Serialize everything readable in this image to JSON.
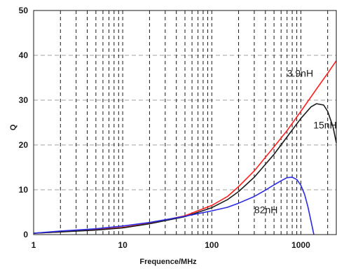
{
  "chart_data": {
    "type": "line",
    "title": "",
    "xlabel": "Frequence/MHz",
    "ylabel": "Q",
    "x_scale": "log",
    "xlim": [
      1,
      2500
    ],
    "ylim": [
      0,
      50
    ],
    "x_ticks": [
      1,
      10,
      100,
      1000
    ],
    "x_tick_labels": [
      "1",
      "10",
      "100",
      "1000"
    ],
    "y_ticks": [
      0,
      10,
      20,
      30,
      40,
      50
    ],
    "y_tick_labels": [
      "0",
      "10",
      "20",
      "30",
      "40",
      "50"
    ],
    "grid": {
      "x": "dashed-black-minor",
      "y": "dashed-gray-major"
    },
    "series": [
      {
        "name": "3.9nH",
        "color": "#ff2020",
        "x": [
          1,
          2,
          5,
          10,
          20,
          50,
          100,
          150,
          200,
          300,
          500,
          700,
          1000,
          1500,
          2000,
          2500
        ],
        "y": [
          0.3,
          0.6,
          1.1,
          1.6,
          2.5,
          4.2,
          6.5,
          8.5,
          10.7,
          14.2,
          19.6,
          23.2,
          27.5,
          32.5,
          36.0,
          38.8
        ]
      },
      {
        "name": "15nH",
        "color": "#1a1a1a",
        "x": [
          1,
          2,
          5,
          10,
          20,
          50,
          100,
          150,
          200,
          300,
          500,
          700,
          1000,
          1300,
          1500,
          1800,
          2000,
          2300,
          2500
        ],
        "y": [
          0.3,
          0.6,
          1.0,
          1.5,
          2.4,
          4.0,
          6.0,
          7.8,
          9.6,
          12.8,
          17.9,
          21.8,
          25.9,
          28.5,
          29.2,
          28.9,
          27.5,
          24.0,
          20.5
        ]
      },
      {
        "name": "82nH",
        "color": "#2a2ae0",
        "x": [
          1,
          2,
          5,
          10,
          20,
          50,
          100,
          150,
          200,
          300,
          400,
          500,
          600,
          700,
          800,
          900,
          1000,
          1100,
          1200,
          1300,
          1400
        ],
        "y": [
          0.3,
          0.8,
          1.3,
          1.9,
          2.7,
          4.1,
          5.3,
          6.1,
          7.0,
          8.5,
          9.9,
          11.1,
          12.0,
          12.7,
          12.8,
          12.3,
          11.0,
          9.0,
          6.2,
          3.0,
          0.0
        ]
      }
    ],
    "annotations": [
      {
        "text": "3.9nH",
        "series": "3.9nH",
        "x": 700,
        "y": 35.2
      },
      {
        "text": "15nH",
        "series": "15nH",
        "x": 1380,
        "y": 23.7
      },
      {
        "text": "82nH",
        "series": "82nH",
        "x": 300,
        "y": 4.8
      }
    ]
  }
}
